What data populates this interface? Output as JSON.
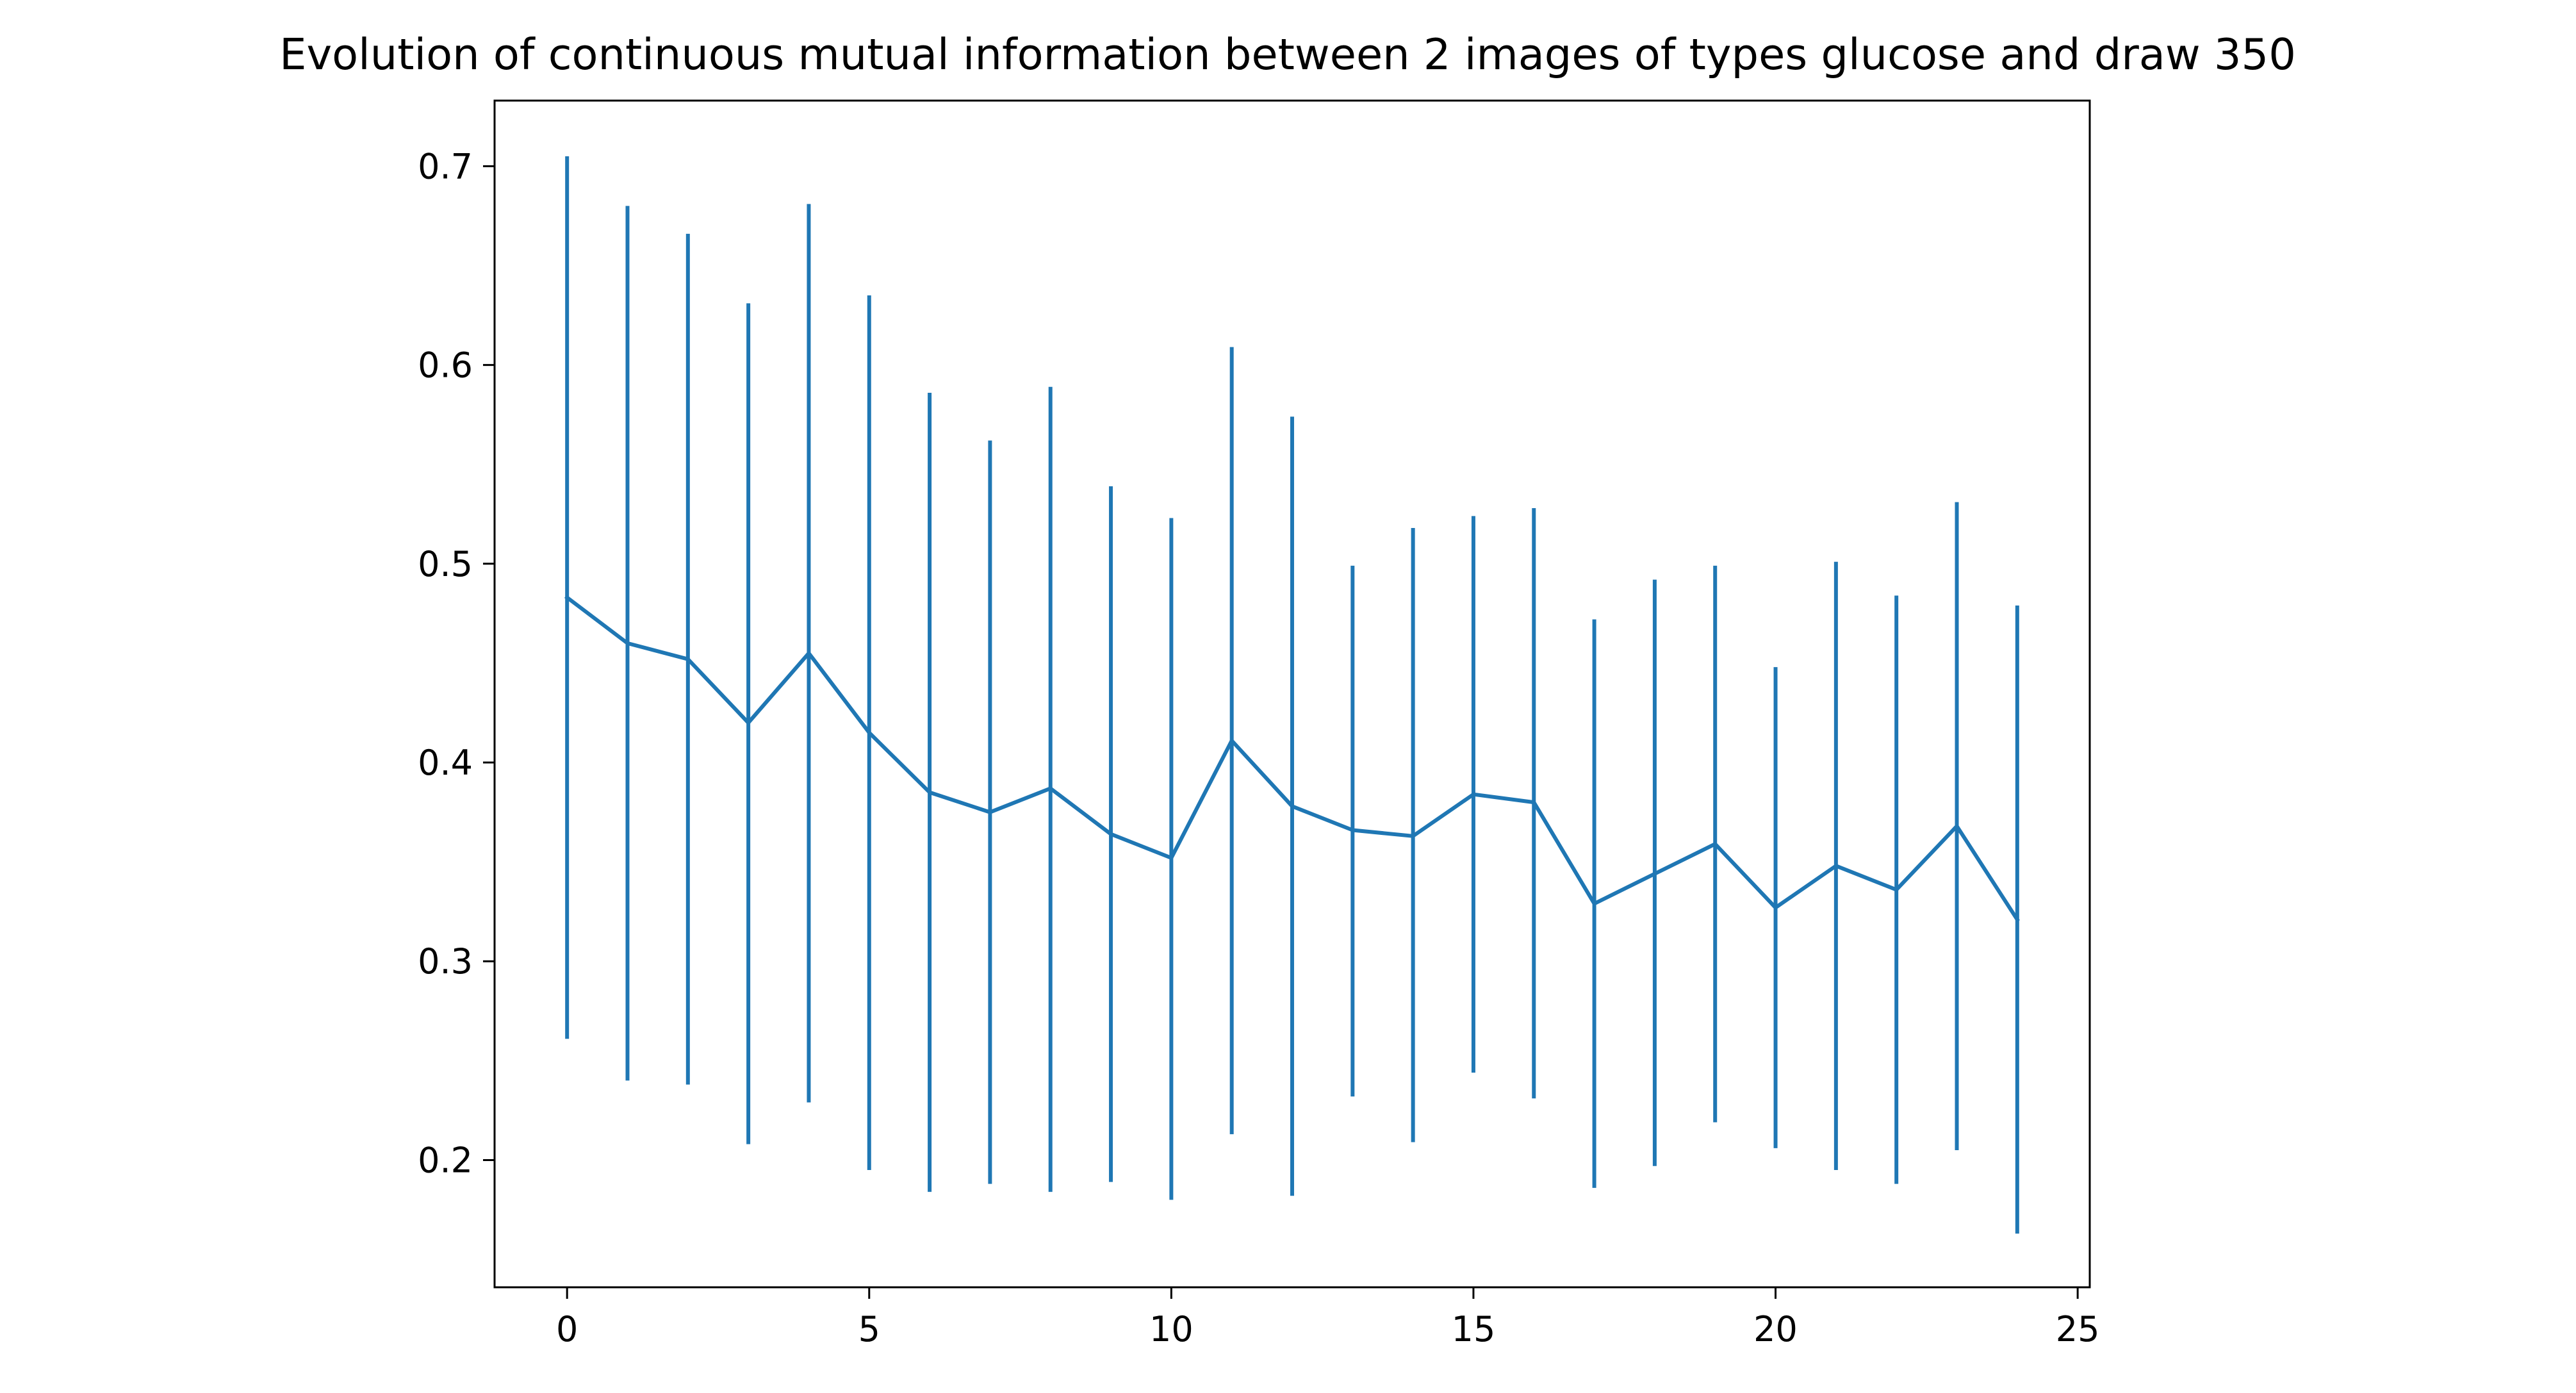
{
  "chart_data": {
    "type": "line",
    "title": "Evolution of continuous mutual information between 2 images of types glucose and draw 350",
    "xlabel": "",
    "ylabel": "",
    "x": [
      0,
      1,
      2,
      3,
      4,
      5,
      6,
      7,
      8,
      9,
      10,
      11,
      12,
      13,
      14,
      15,
      16,
      17,
      18,
      19,
      20,
      21,
      22,
      23,
      24
    ],
    "series": [
      {
        "values": [
          0.483,
          0.46,
          0.452,
          0.42,
          0.455,
          0.415,
          0.385,
          0.375,
          0.387,
          0.364,
          0.352,
          0.411,
          0.378,
          0.366,
          0.363,
          0.384,
          0.38,
          0.329,
          0.344,
          0.359,
          0.327,
          0.348,
          0.336,
          0.368,
          0.321
        ],
        "error_low": [
          0.261,
          0.24,
          0.238,
          0.208,
          0.229,
          0.195,
          0.184,
          0.188,
          0.184,
          0.189,
          0.18,
          0.213,
          0.182,
          0.232,
          0.209,
          0.244,
          0.231,
          0.186,
          0.197,
          0.219,
          0.206,
          0.195,
          0.188,
          0.205,
          0.163
        ],
        "error_high": [
          0.705,
          0.68,
          0.666,
          0.631,
          0.681,
          0.635,
          0.586,
          0.562,
          0.589,
          0.539,
          0.523,
          0.609,
          0.574,
          0.499,
          0.518,
          0.524,
          0.528,
          0.472,
          0.492,
          0.499,
          0.448,
          0.501,
          0.484,
          0.531,
          0.479
        ],
        "color": "#1f77b4"
      }
    ],
    "xlim": [
      -1.2,
      25.2
    ],
    "ylim": [
      0.136,
      0.733
    ],
    "xticks": [
      0,
      5,
      10,
      15,
      20,
      25
    ],
    "xtick_labels": [
      "0",
      "5",
      "10",
      "15",
      "20",
      "25"
    ],
    "yticks": [
      0.2,
      0.3,
      0.4,
      0.5,
      0.6,
      0.7
    ],
    "ytick_labels": [
      "0.2",
      "0.3",
      "0.4",
      "0.5",
      "0.6",
      "0.7"
    ],
    "grid": false,
    "legend": "none"
  }
}
